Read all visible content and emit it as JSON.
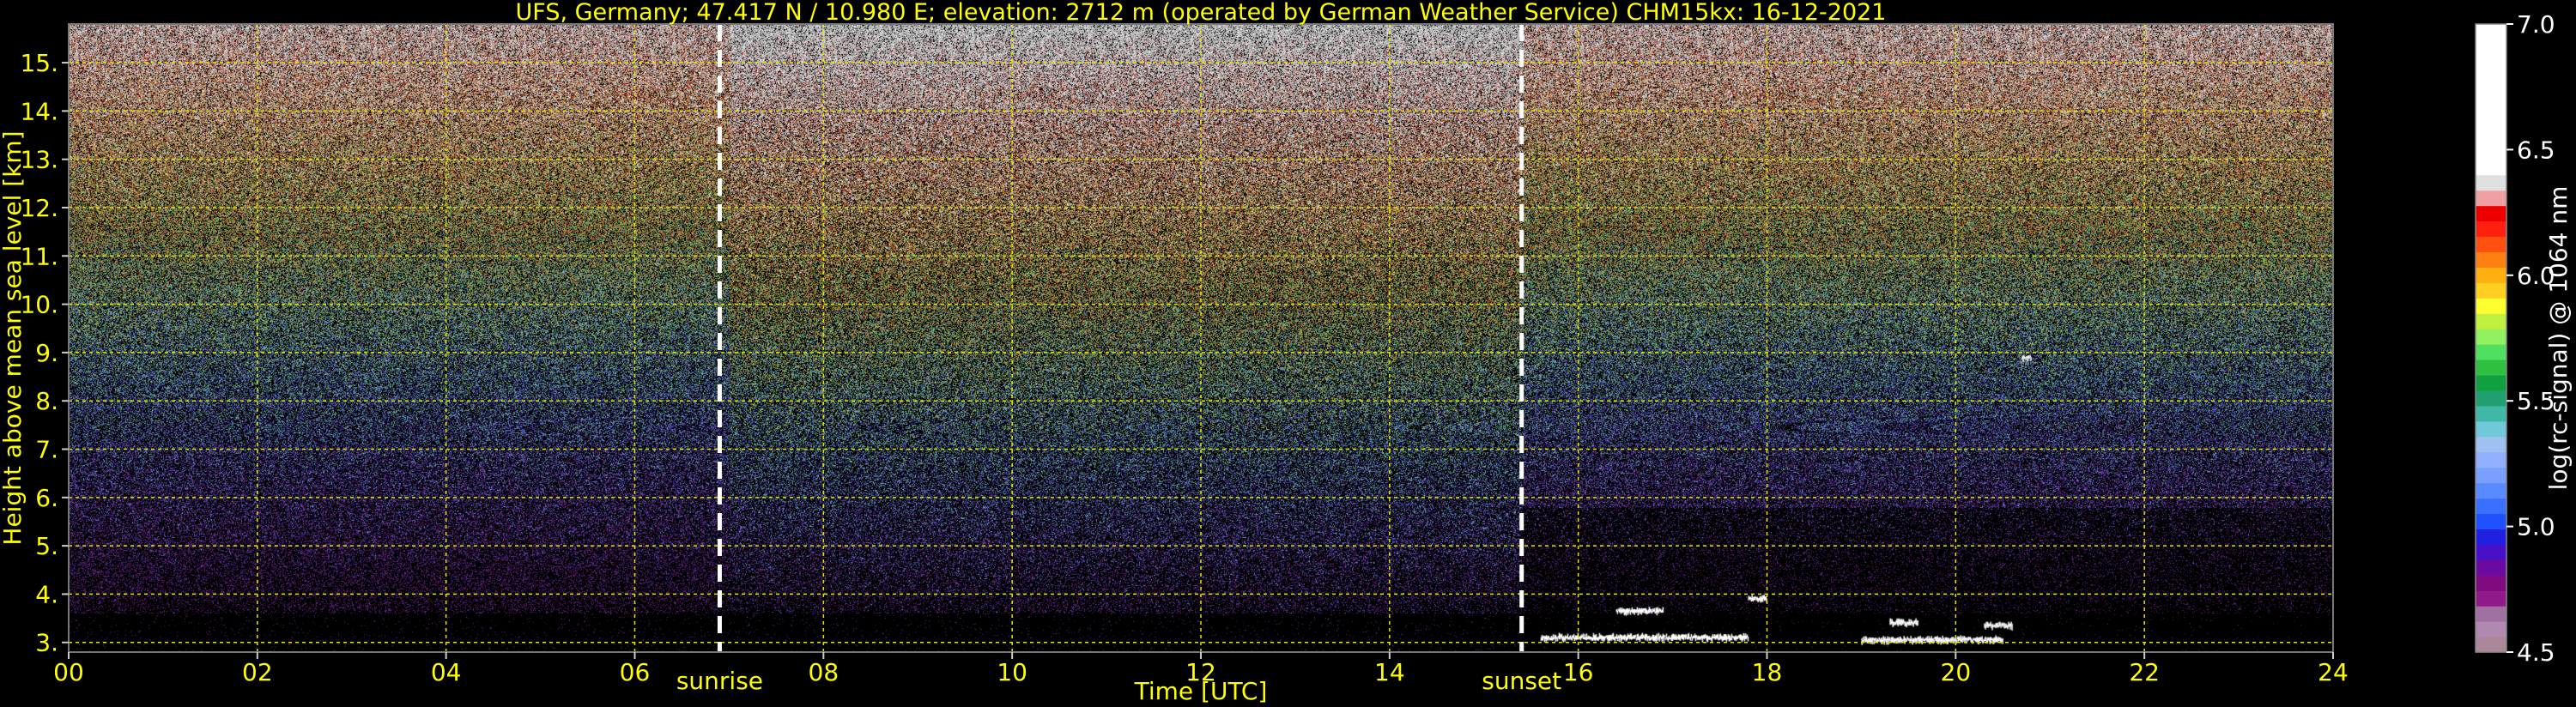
{
  "colors": {
    "background": "#000000",
    "text": "#ffff00",
    "grid": "#e6e600",
    "colorbar_text": "#ffffff",
    "marker": "#ffffff"
  },
  "chart_data": {
    "type": "heatmap",
    "title": "UFS, Germany; 47.417 N / 10.980 E; elevation: 2712 m  (operated by German Weather Service)    CHM15kx: 16-12-2021",
    "xlabel": "Time [UTC]",
    "ylabel": "Height above mean sea level [km]",
    "xlim": [
      0,
      24
    ],
    "ylim": [
      2.8,
      15.8
    ],
    "x_ticks": [
      "00",
      "02",
      "04",
      "06",
      "08",
      "10",
      "12",
      "14",
      "16",
      "18",
      "20",
      "22",
      "24"
    ],
    "x_tick_values": [
      0,
      2,
      4,
      6,
      8,
      10,
      12,
      14,
      16,
      18,
      20,
      22,
      24
    ],
    "y_ticks": [
      "3.",
      "4.",
      "5.",
      "6.",
      "7.",
      "8.",
      "9.",
      "10.",
      "11.",
      "12.",
      "13.",
      "14.",
      "15."
    ],
    "y_tick_values": [
      3,
      4,
      5,
      6,
      7,
      8,
      9,
      10,
      11,
      12,
      13,
      14,
      15
    ],
    "grid": true,
    "markers": [
      {
        "label": "sunrise",
        "x": 6.9
      },
      {
        "label": "sunset",
        "x": 15.4
      }
    ],
    "colorbar": {
      "label": "log(rc-signal) @ 1064 nm",
      "range": [
        4.5,
        7.0
      ],
      "ticks": [
        "4.5",
        "5.0",
        "5.5",
        "6.0",
        "6.5",
        "7.0"
      ],
      "tick_values": [
        4.5,
        5.0,
        5.5,
        6.0,
        6.5,
        7.0
      ],
      "position": "right"
    },
    "cloud_features": [
      {
        "x_start": 15.6,
        "x_end": 17.8,
        "height": 3.1
      },
      {
        "x_start": 16.4,
        "x_end": 16.9,
        "height": 3.65
      },
      {
        "x_start": 17.8,
        "x_end": 18.0,
        "height": 3.9
      },
      {
        "x_start": 19.0,
        "x_end": 20.5,
        "height": 3.05
      },
      {
        "x_start": 19.3,
        "x_end": 19.6,
        "height": 3.4
      },
      {
        "x_start": 20.3,
        "x_end": 20.6,
        "height": 3.35
      },
      {
        "x_start": 20.7,
        "x_end": 20.8,
        "height": 8.9
      }
    ]
  }
}
